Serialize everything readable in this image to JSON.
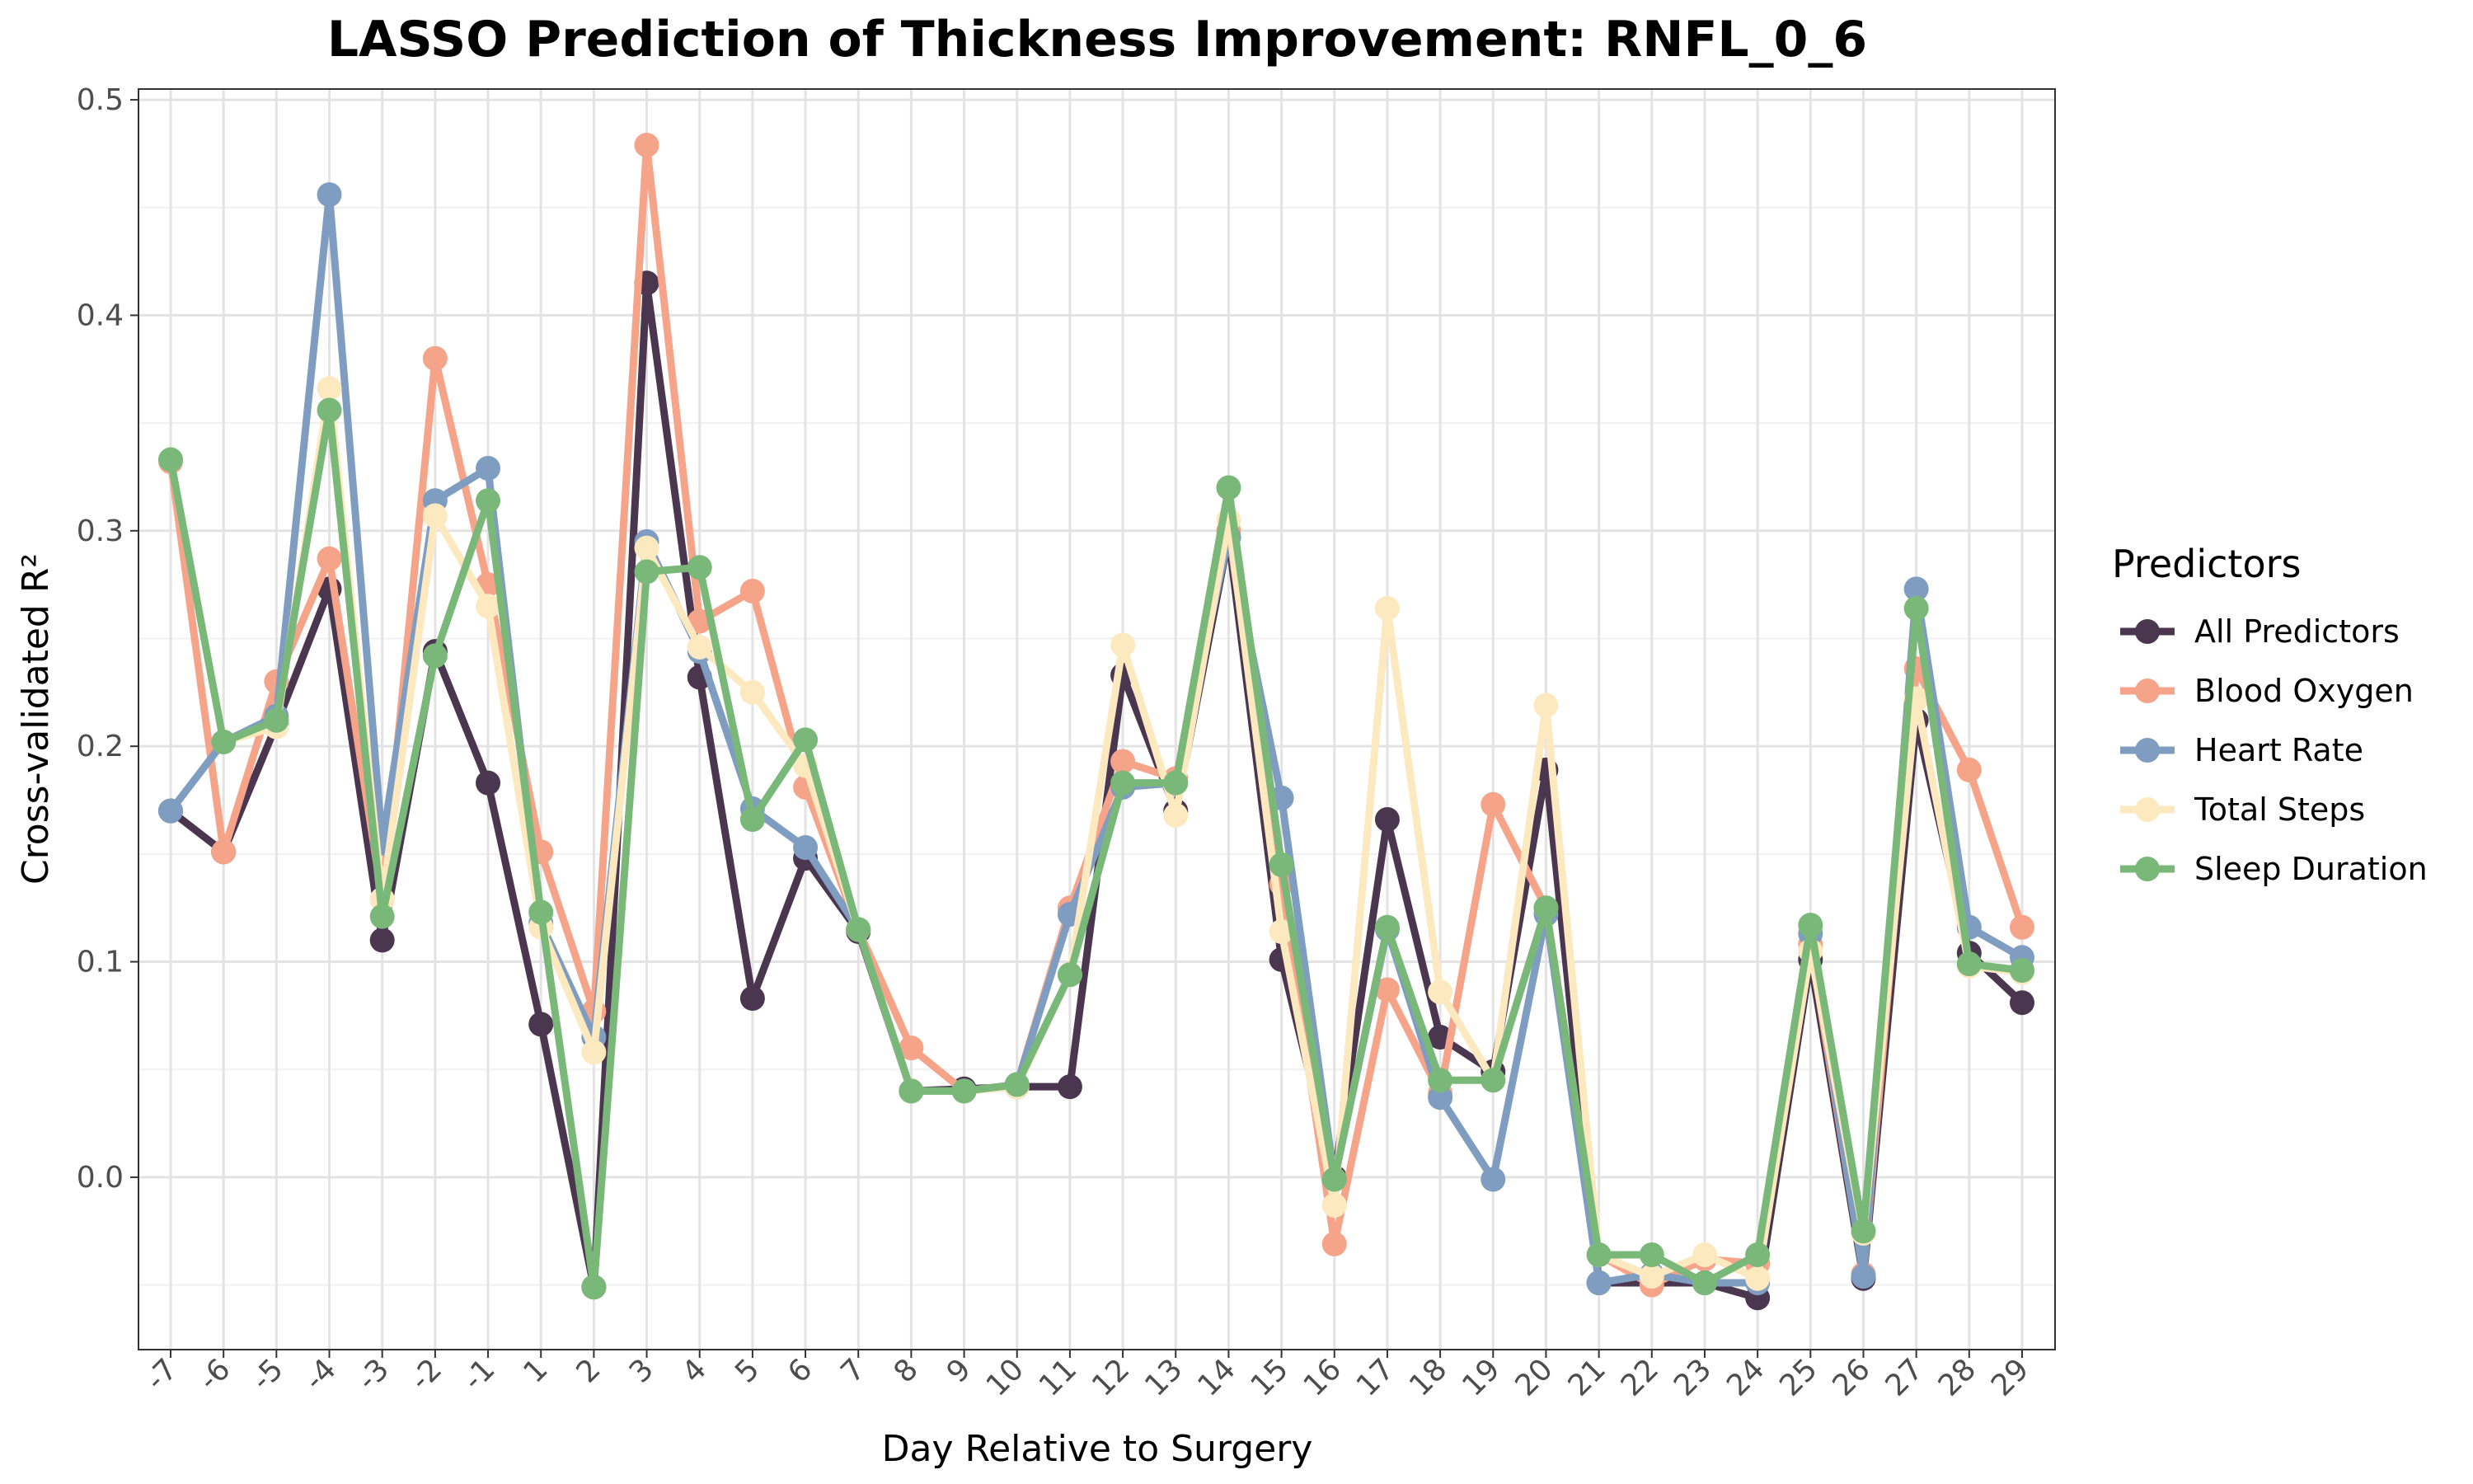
{
  "chart_data": {
    "type": "line",
    "title": "LASSO Prediction of Thickness Improvement: RNFL_0_6",
    "xlabel": "Day Relative to Surgery",
    "ylabel": "Cross-validated R²",
    "ylim": [
      -0.08,
      0.505
    ],
    "yticks": [
      0.0,
      0.1,
      0.2,
      0.3,
      0.4,
      0.5
    ],
    "grid": true,
    "legend_title": "Predictors",
    "legend_position": "right",
    "categories": [
      "-7",
      "-6",
      "-5",
      "-4",
      "-3",
      "-2",
      "-1",
      "1",
      "2",
      "3",
      "4",
      "5",
      "6",
      "7",
      "8",
      "9",
      "10",
      "11",
      "12",
      "13",
      "14",
      "15",
      "16",
      "17",
      "18",
      "19",
      "20",
      "21",
      "22",
      "23",
      "24",
      "25",
      "26",
      "27",
      "28",
      "29"
    ],
    "series": [
      {
        "name": "All Predictors",
        "color": "#4b3650",
        "values": [
          0.17,
          0.151,
          0.21,
          0.273,
          0.11,
          0.244,
          0.183,
          0.071,
          -0.051,
          0.415,
          0.232,
          0.083,
          0.148,
          0.114,
          0.04,
          0.041,
          0.042,
          0.042,
          0.233,
          0.17,
          0.297,
          0.101,
          0.0,
          0.166,
          0.065,
          0.049,
          0.189,
          -0.049,
          -0.049,
          -0.049,
          -0.056,
          0.101,
          -0.047,
          0.212,
          0.104,
          0.081
        ]
      },
      {
        "name": "Blood Oxygen",
        "color": "#f5a48a",
        "values": [
          0.332,
          0.151,
          0.23,
          0.287,
          0.129,
          0.38,
          0.275,
          0.151,
          0.077,
          0.479,
          0.258,
          0.272,
          0.181,
          0.115,
          0.06,
          0.04,
          0.043,
          0.125,
          0.193,
          0.185,
          0.3,
          0.136,
          -0.031,
          0.087,
          0.039,
          0.173,
          0.125,
          -0.036,
          -0.05,
          -0.038,
          -0.04,
          0.108,
          -0.045,
          0.236,
          0.189,
          0.116
        ]
      },
      {
        "name": "Heart Rate",
        "color": "#7f9dc0",
        "values": [
          0.17,
          0.202,
          0.214,
          0.456,
          0.155,
          0.314,
          0.329,
          0.118,
          0.065,
          0.295,
          0.244,
          0.171,
          0.153,
          0.115,
          0.04,
          0.04,
          0.043,
          0.122,
          0.181,
          0.183,
          0.297,
          0.176,
          -0.001,
          0.115,
          0.037,
          -0.001,
          0.122,
          -0.049,
          -0.045,
          -0.049,
          -0.049,
          0.113,
          -0.046,
          0.273,
          0.116,
          0.102
        ]
      },
      {
        "name": "Total Steps",
        "color": "#fde9bf",
        "values": [
          0.333,
          0.202,
          0.209,
          0.366,
          0.129,
          0.307,
          0.265,
          0.116,
          0.058,
          0.292,
          0.246,
          0.225,
          0.191,
          0.115,
          0.04,
          0.04,
          0.042,
          0.094,
          0.247,
          0.168,
          0.305,
          0.114,
          -0.013,
          0.264,
          0.086,
          0.045,
          0.219,
          -0.036,
          -0.046,
          -0.036,
          -0.047,
          0.105,
          -0.026,
          0.222,
          0.098,
          0.095
        ]
      },
      {
        "name": "Sleep Duration",
        "color": "#7ab87a",
        "values": [
          0.333,
          0.202,
          0.212,
          0.356,
          0.121,
          0.242,
          0.314,
          0.123,
          -0.051,
          0.281,
          0.283,
          0.166,
          0.203,
          0.115,
          0.04,
          0.04,
          0.043,
          0.094,
          0.183,
          0.183,
          0.32,
          0.145,
          -0.001,
          0.116,
          0.045,
          0.045,
          0.125,
          -0.036,
          -0.036,
          -0.049,
          -0.036,
          0.117,
          -0.025,
          0.264,
          0.099,
          0.096
        ]
      }
    ]
  }
}
